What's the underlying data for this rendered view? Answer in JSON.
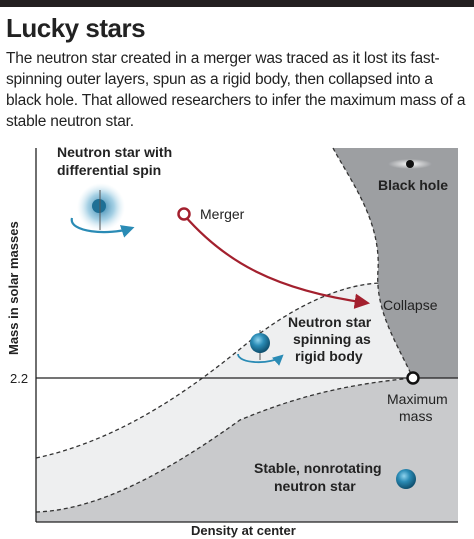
{
  "header": {
    "title": "Lucky stars",
    "subtitle": "The neutron star created in a merger was traced as it lost its fast-spinning outer layers, spun as a rigid body, then collapsed into a black hole. That allowed researchers to infer the maximum mass of a stable neutron star."
  },
  "axes": {
    "ylabel": "Mass in solar masses",
    "xlabel": "Density at center",
    "ytick": "2.2"
  },
  "labels": {
    "differential_line1": "Neutron star with",
    "differential_line2": "differential spin",
    "merger": "Merger",
    "black_hole": "Black hole",
    "collapse": "Collapse",
    "rigid_line1": "Neutron star",
    "rigid_line2": "spinning as",
    "rigid_line3": "rigid body",
    "maximum_line1": "Maximum",
    "maximum_line2": "mass",
    "stable_line1": "Stable, nonrotating",
    "stable_line2": "neutron star"
  },
  "colors": {
    "path_arrow": "#a3202e",
    "black_hole_region": "#9d9fa2",
    "stable_region": "#c9cacc",
    "rigid_region": "#eeeff0",
    "star_blue": "#1e7fa6",
    "topbar": "#231f20"
  },
  "icons": [
    "black-hole-icon",
    "differential-spin-star-icon",
    "rigid-spin-star-icon",
    "nonrotating-star-icon"
  ]
}
